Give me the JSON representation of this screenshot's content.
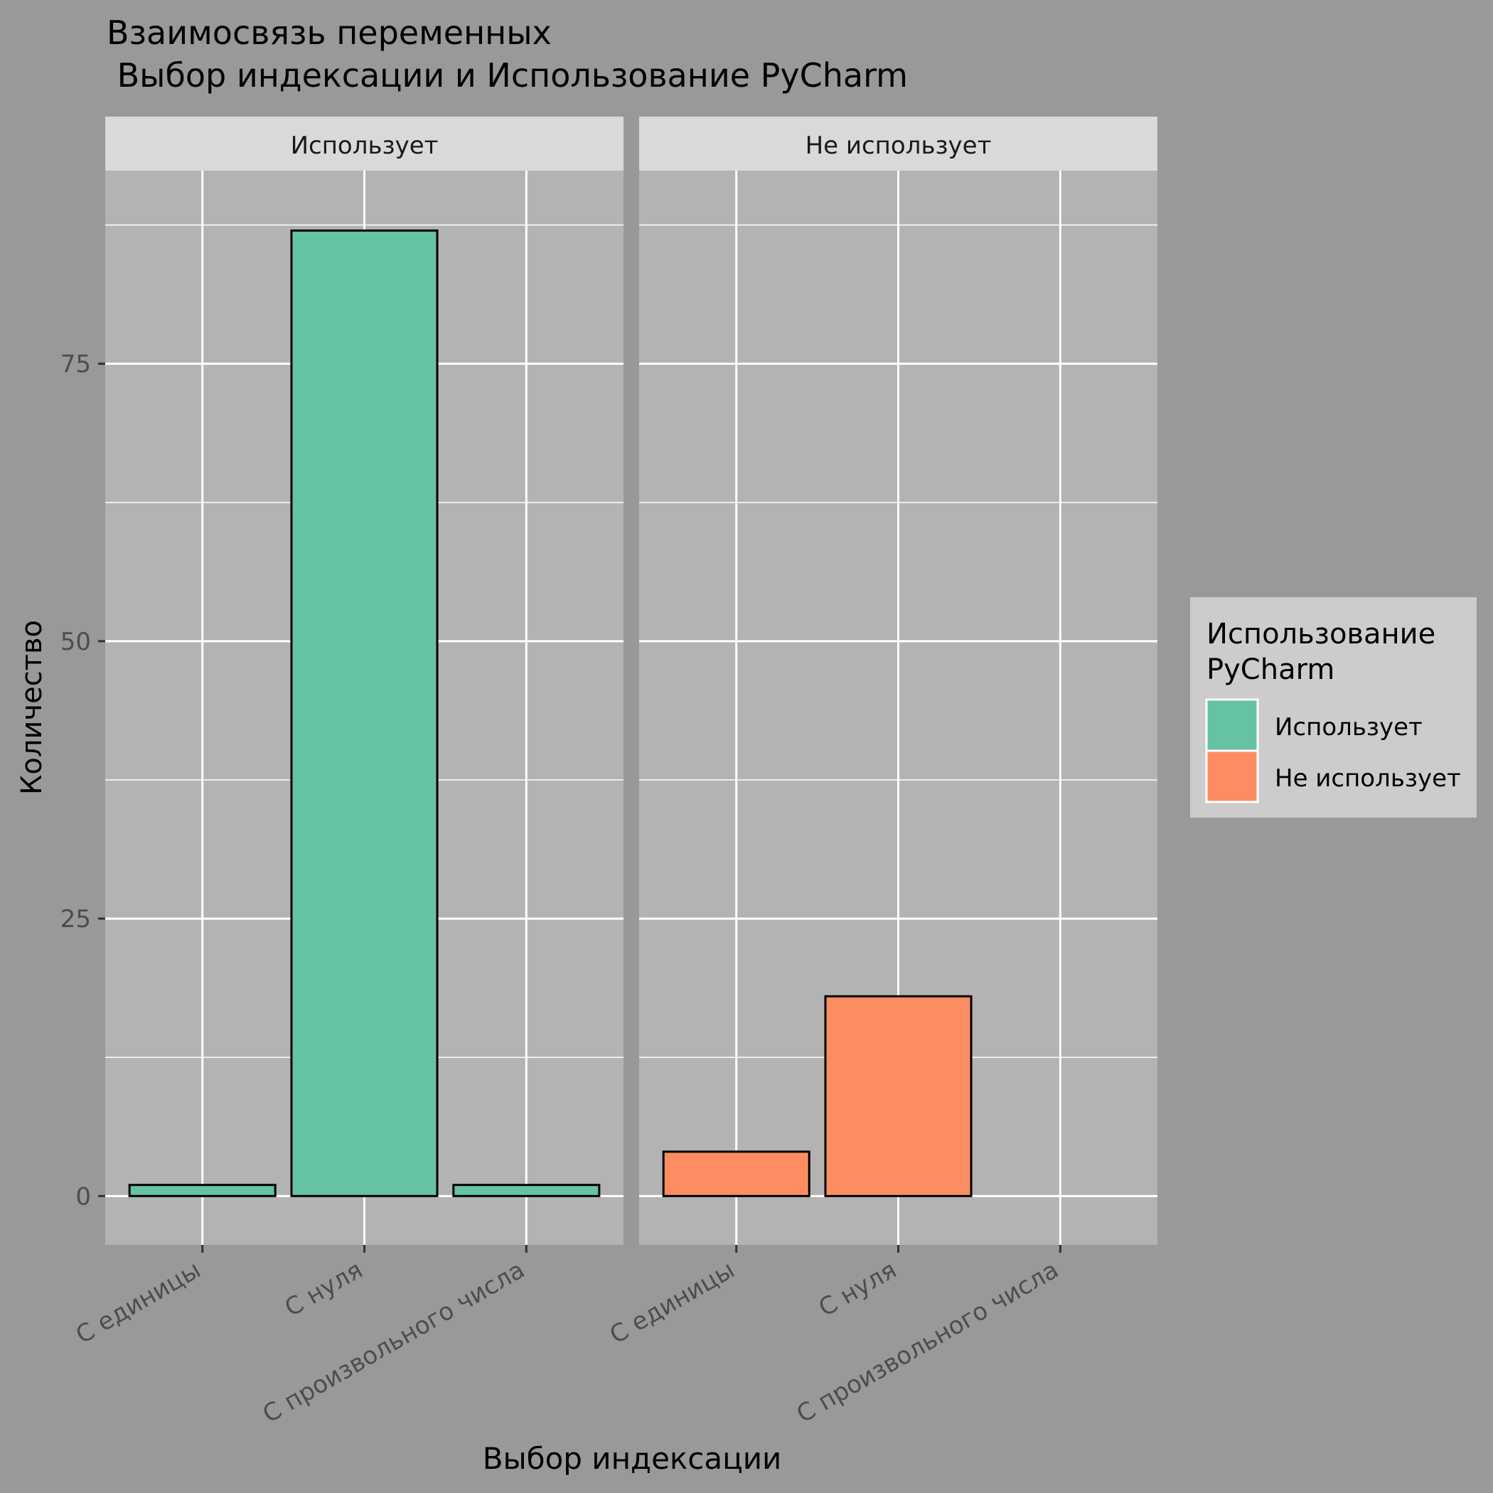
{
  "chart_data": {
    "type": "bar",
    "title_line1": "Взаимосвязь переменных",
    "title_line2": " Выбор индексации и Использование PyCharm",
    "xlabel": "Выбор индексации",
    "ylabel": "Количество",
    "categories": [
      "С единицы",
      "С нуля",
      "С произвольного числа"
    ],
    "yticks": [
      0,
      25,
      50,
      75
    ],
    "ylim": [
      -4.4,
      92.4
    ],
    "grid": true,
    "legend": {
      "title_line1": "Использование",
      "title_line2": "PyCharm",
      "placement": "right",
      "entries": [
        "Использует",
        "Не использует"
      ]
    },
    "facets": [
      {
        "label": "Использует",
        "values": [
          1,
          87,
          1
        ],
        "color": "#66C2A5"
      },
      {
        "label": "Не использует",
        "values": [
          4,
          18,
          0
        ],
        "color": "#FC8D62"
      }
    ],
    "colors": {
      "background": "#999999",
      "panel": "#B3B3B3",
      "strip": "#D9D9D9",
      "legend_bg": "#CCCCCC",
      "grid": "#FFFFFF",
      "bar_outline": "#000000"
    }
  }
}
